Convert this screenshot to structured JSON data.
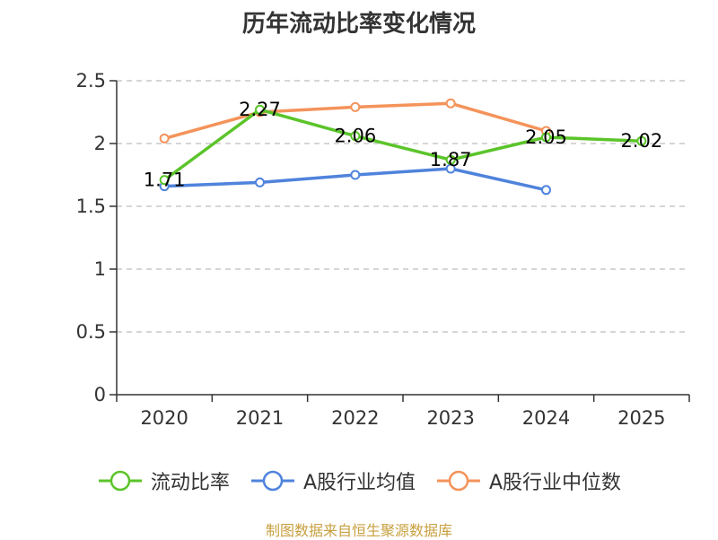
{
  "chart_data": {
    "type": "line",
    "title": "历年流动比率变化情况",
    "categories": [
      "2020",
      "2021",
      "2022",
      "2023",
      "2024",
      "2025"
    ],
    "ylim": [
      0,
      2.5
    ],
    "yticks": [
      "0",
      "0.5",
      "1",
      "1.5",
      "2",
      "2.5"
    ],
    "grid": "horizontal-dashed",
    "legend_position": "bottom",
    "series": [
      {
        "name": "流动比率",
        "color": "#5bc42a",
        "values": [
          1.71,
          2.27,
          2.06,
          1.87,
          2.05,
          2.02
        ],
        "labels": [
          "1.71",
          "2.27",
          "2.06",
          "1.87",
          "2.05",
          "2.02"
        ]
      },
      {
        "name": "A股行业均值",
        "color": "#4f83dc",
        "values": [
          1.66,
          1.69,
          1.75,
          1.8,
          1.63,
          null
        ]
      },
      {
        "name": "A股行业中位数",
        "color": "#f4935a",
        "values": [
          2.04,
          2.25,
          2.29,
          2.32,
          2.1,
          null
        ]
      }
    ]
  },
  "footer": {
    "source": "制图数据来自恒生聚源数据库"
  }
}
